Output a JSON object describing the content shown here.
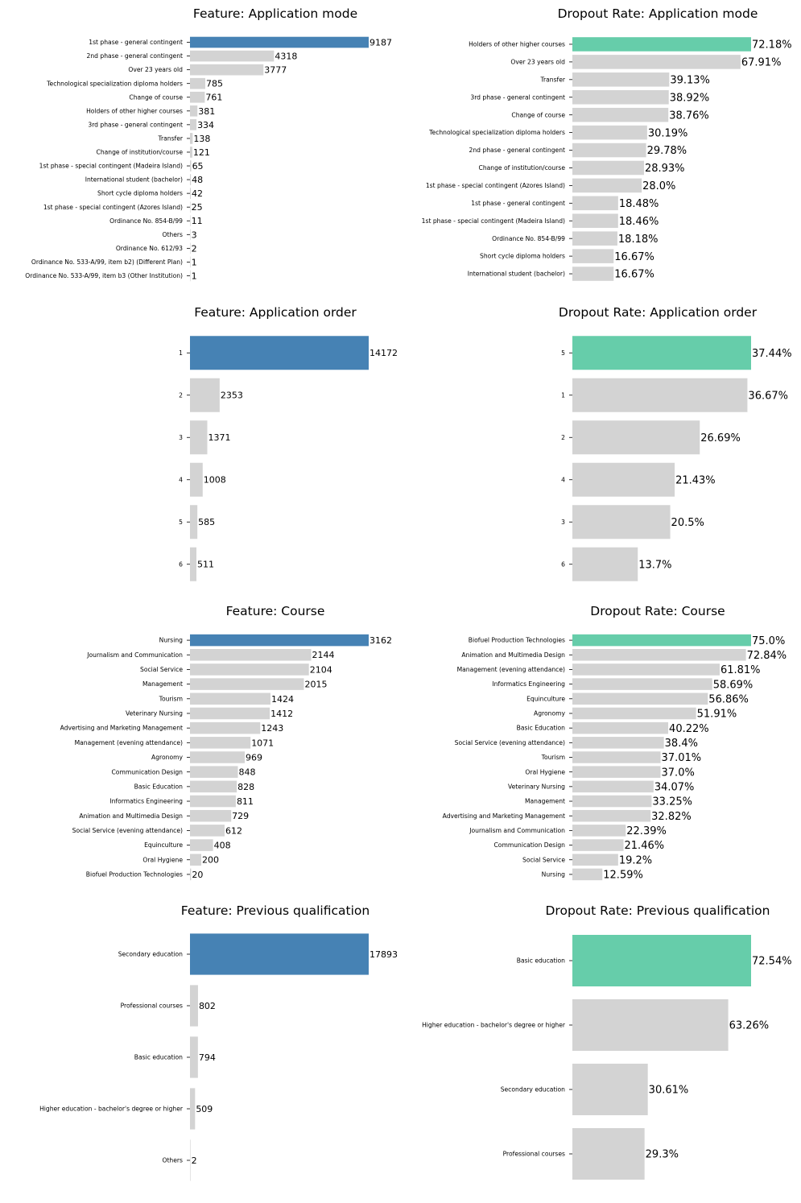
{
  "colors": {
    "highlight_count": "#4682b4",
    "highlight_rate": "#66cdaa",
    "bar": "#d3d3d3",
    "text": "#000000"
  },
  "chart_data": [
    {
      "type": "bar",
      "orientation": "horizontal",
      "title": "Feature: Application mode",
      "xlabel": "",
      "ylabel": "",
      "categories": [
        "1st phase - general contingent",
        "2nd phase - general contingent",
        "Over 23 years old",
        "Technological specialization diploma holders",
        "Change of course",
        "Holders of other higher courses",
        "3rd phase - general contingent",
        "Transfer",
        "Change of institution/course",
        "1st phase - special contingent (Madeira Island)",
        "International student (bachelor)",
        "Short cycle diploma holders",
        "1st phase - special contingent (Azores Island)",
        "Ordinance No. 854-B/99",
        "Others",
        "Ordinance No. 612/93",
        "Ordinance No. 533-A/99, item b2) (Different Plan)",
        "Ordinance No. 533-A/99, item b3 (Other Institution)"
      ],
      "values": [
        9187,
        4318,
        3777,
        785,
        761,
        381,
        334,
        138,
        121,
        65,
        48,
        42,
        25,
        11,
        3,
        2,
        1,
        1
      ],
      "labels": [
        "9187",
        "4318",
        "3777",
        "785",
        "761",
        "381",
        "334",
        "138",
        "121",
        "65",
        "48",
        "42",
        "25",
        "11",
        "3",
        "2",
        "1",
        "1"
      ],
      "highlight_index": 0,
      "grid": false,
      "legend": "none"
    },
    {
      "type": "bar",
      "orientation": "horizontal",
      "title": "Dropout Rate: Application mode",
      "xlabel": "",
      "ylabel": "",
      "categories": [
        "Holders of other higher courses",
        "Over 23 years old",
        "Transfer",
        "3rd phase - general contingent",
        "Change of course",
        "Technological specialization diploma holders",
        "2nd phase - general contingent",
        "Change of institution/course",
        "1st phase - special contingent (Azores Island)",
        "1st phase - general contingent",
        "1st phase - special contingent (Madeira Island)",
        "Ordinance No. 854-B/99",
        "Short cycle diploma holders",
        "International student (bachelor)"
      ],
      "values": [
        72.18,
        67.91,
        39.13,
        38.92,
        38.76,
        30.19,
        29.78,
        28.93,
        28.0,
        18.48,
        18.46,
        18.18,
        16.67,
        16.67
      ],
      "labels": [
        "72.18%",
        "67.91%",
        "39.13%",
        "38.92%",
        "38.76%",
        "30.19%",
        "29.78%",
        "28.93%",
        "28.0%",
        "18.48%",
        "18.46%",
        "18.18%",
        "16.67%",
        "16.67%"
      ],
      "highlight_index": 0,
      "grid": false,
      "legend": "none"
    },
    {
      "type": "bar",
      "orientation": "horizontal",
      "title": "Feature: Application order",
      "xlabel": "",
      "ylabel": "",
      "categories": [
        "1",
        "2",
        "3",
        "4",
        "5",
        "6"
      ],
      "values": [
        14172,
        2353,
        1371,
        1008,
        585,
        511
      ],
      "labels": [
        "14172",
        "2353",
        "1371",
        "1008",
        "585",
        "511"
      ],
      "highlight_index": 0,
      "grid": false,
      "legend": "none"
    },
    {
      "type": "bar",
      "orientation": "horizontal",
      "title": "Dropout Rate: Application order",
      "xlabel": "",
      "ylabel": "",
      "categories": [
        "5",
        "1",
        "2",
        "4",
        "3",
        "6"
      ],
      "values": [
        37.44,
        36.67,
        26.69,
        21.43,
        20.5,
        13.7
      ],
      "labels": [
        "37.44%",
        "36.67%",
        "26.69%",
        "21.43%",
        "20.5%",
        "13.7%"
      ],
      "highlight_index": 0,
      "grid": false,
      "legend": "none"
    },
    {
      "type": "bar",
      "orientation": "horizontal",
      "title": "Feature: Course",
      "xlabel": "",
      "ylabel": "",
      "categories": [
        "Nursing",
        "Journalism and Communication",
        "Social Service",
        "Management",
        "Tourism",
        "Veterinary Nursing",
        "Advertising and Marketing Management",
        "Management (evening attendance)",
        "Agronomy",
        "Communication Design",
        "Basic Education",
        "Informatics Engineering",
        "Animation and Multimedia Design",
        "Social Service (evening attendance)",
        "Equinculture",
        "Oral Hygiene",
        "Biofuel Production Technologies"
      ],
      "values": [
        3162,
        2144,
        2104,
        2015,
        1424,
        1412,
        1243,
        1071,
        969,
        848,
        828,
        811,
        729,
        612,
        408,
        200,
        20
      ],
      "labels": [
        "3162",
        "2144",
        "2104",
        "2015",
        "1424",
        "1412",
        "1243",
        "1071",
        "969",
        "848",
        "828",
        "811",
        "729",
        "612",
        "408",
        "200",
        "20"
      ],
      "highlight_index": 0,
      "grid": false,
      "legend": "none"
    },
    {
      "type": "bar",
      "orientation": "horizontal",
      "title": "Dropout Rate: Course",
      "xlabel": "",
      "ylabel": "",
      "categories": [
        "Biofuel Production Technologies",
        "Animation and Multimedia Design",
        "Management (evening attendance)",
        "Informatics Engineering",
        "Equinculture",
        "Agronomy",
        "Basic Education",
        "Social Service (evening attendance)",
        "Tourism",
        "Oral Hygiene",
        "Veterinary Nursing",
        "Management",
        "Advertising and Marketing Management",
        "Journalism and Communication",
        "Communication Design",
        "Social Service",
        "Nursing"
      ],
      "values": [
        75.0,
        72.84,
        61.81,
        58.69,
        56.86,
        51.91,
        40.22,
        38.4,
        37.01,
        37.0,
        34.07,
        33.25,
        32.82,
        22.39,
        21.46,
        19.2,
        12.59
      ],
      "labels": [
        "75.0%",
        "72.84%",
        "61.81%",
        "58.69%",
        "56.86%",
        "51.91%",
        "40.22%",
        "38.4%",
        "37.01%",
        "37.0%",
        "34.07%",
        "33.25%",
        "32.82%",
        "22.39%",
        "21.46%",
        "19.2%",
        "12.59%"
      ],
      "highlight_index": 0,
      "grid": false,
      "legend": "none"
    },
    {
      "type": "bar",
      "orientation": "horizontal",
      "title": "Feature: Previous qualification",
      "xlabel": "",
      "ylabel": "",
      "categories": [
        "Secondary education",
        "Professional courses",
        "Basic education",
        "Higher education - bachelor's degree or higher",
        "Others"
      ],
      "values": [
        17893,
        802,
        794,
        509,
        2
      ],
      "labels": [
        "17893",
        "802",
        "794",
        "509",
        "2"
      ],
      "highlight_index": 0,
      "grid": false,
      "legend": "none"
    },
    {
      "type": "bar",
      "orientation": "horizontal",
      "title": "Dropout Rate: Previous qualification",
      "xlabel": "",
      "ylabel": "",
      "categories": [
        "Basic education",
        "Higher education - bachelor's degree or higher",
        "Secondary education",
        "Professional courses"
      ],
      "values": [
        72.54,
        63.26,
        30.61,
        29.3
      ],
      "labels": [
        "72.54%",
        "63.26%",
        "30.61%",
        "29.3%"
      ],
      "highlight_index": 0,
      "grid": false,
      "legend": "none"
    }
  ]
}
